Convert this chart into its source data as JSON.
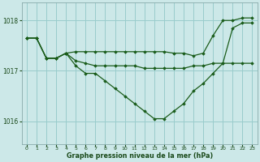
{
  "title": "Graphe pression niveau de la mer (hPa)",
  "bg_color": "#cce8e8",
  "grid_color": "#99cccc",
  "line_color": "#1a5c1a",
  "xlim": [
    -0.5,
    23.5
  ],
  "ylim": [
    1015.55,
    1018.35
  ],
  "yticks": [
    1016,
    1017,
    1018
  ],
  "xticks": [
    0,
    1,
    2,
    3,
    4,
    5,
    6,
    7,
    8,
    9,
    10,
    11,
    12,
    13,
    14,
    15,
    16,
    17,
    18,
    19,
    20,
    21,
    22,
    23
  ],
  "series": [
    {
      "x": [
        0,
        1,
        2,
        3,
        4,
        5,
        6,
        7,
        8,
        9,
        10,
        11,
        12,
        13,
        14,
        15,
        16,
        17,
        18,
        19,
        20,
        21,
        22,
        23
      ],
      "y": [
        1017.65,
        1017.65,
        1017.25,
        1017.25,
        1017.35,
        1017.38,
        1017.38,
        1017.38,
        1017.38,
        1017.38,
        1017.38,
        1017.38,
        1017.38,
        1017.38,
        1017.38,
        1017.35,
        1017.35,
        1017.3,
        1017.35,
        1017.7,
        1018.0,
        1018.0,
        1018.05,
        1018.05
      ],
      "marker": true
    },
    {
      "x": [
        0,
        1,
        2,
        3,
        4,
        5,
        6,
        7,
        8,
        9,
        10,
        11,
        12,
        13,
        14,
        15,
        16,
        17,
        18,
        19,
        20,
        21,
        22,
        23
      ],
      "y": [
        1017.65,
        1017.65,
        1017.25,
        1017.25,
        1017.35,
        1017.2,
        1017.15,
        1017.1,
        1017.1,
        1017.1,
        1017.1,
        1017.1,
        1017.05,
        1017.05,
        1017.05,
        1017.05,
        1017.05,
        1017.1,
        1017.1,
        1017.15,
        1017.15,
        1017.15,
        1017.15,
        1017.15
      ],
      "marker": true
    },
    {
      "x": [
        0,
        1,
        2,
        3,
        4,
        5,
        6,
        7,
        8,
        9,
        10,
        11,
        12,
        13,
        14,
        15,
        16,
        17,
        18,
        19,
        20,
        21,
        22,
        23
      ],
      "y": [
        1017.65,
        1017.65,
        1017.25,
        1017.25,
        1017.35,
        1017.1,
        1016.95,
        1016.95,
        1016.8,
        1016.65,
        1016.5,
        1016.35,
        1016.2,
        1016.05,
        1016.05,
        1016.2,
        1016.35,
        1016.6,
        1016.75,
        1016.95,
        1017.15,
        1017.85,
        1017.95,
        1017.95
      ],
      "marker": true
    }
  ]
}
